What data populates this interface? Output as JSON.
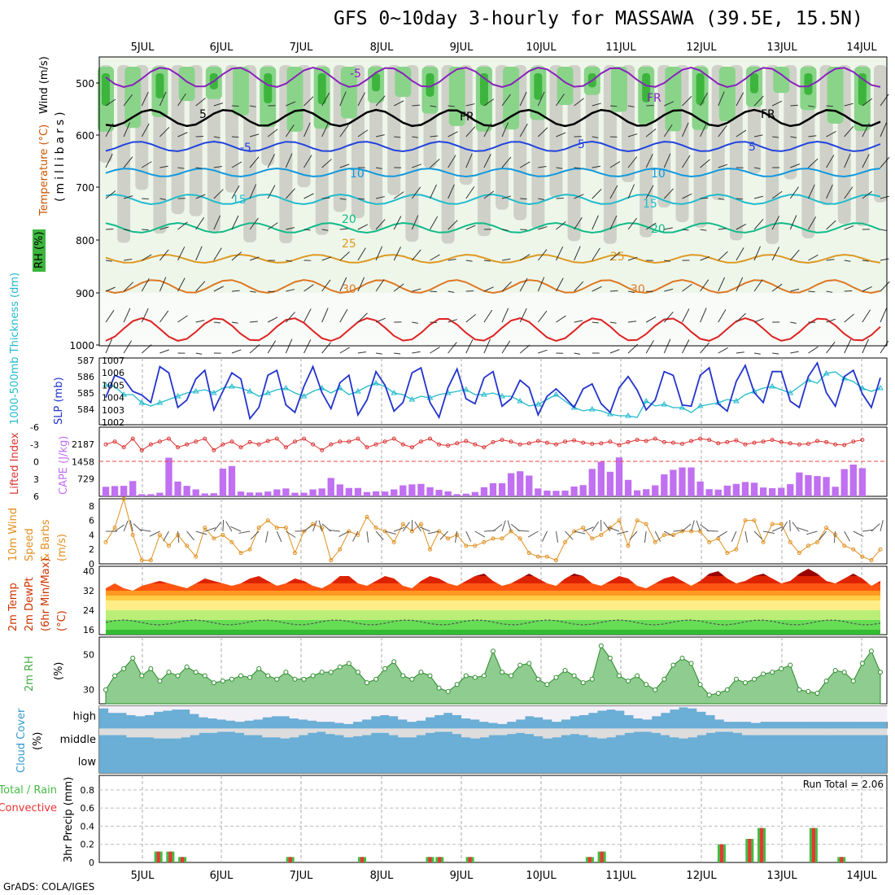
{
  "title": "GFS 0~10day 3-hourly for MASSAWA (39.5E, 15.5N)",
  "credit": "GrADS: COLA/IGES",
  "dates": [
    "5JUL",
    "6JUL",
    "7JUL",
    "8JUL",
    "9JUL",
    "10JUL",
    "11JUL",
    "12JUL",
    "13JUL",
    "14JUL"
  ],
  "colors": {
    "rh_dark": "#3db53d",
    "rh_mid": "#8ad48a",
    "rh_light": "#c4c4bd",
    "cloud": "#6baed6",
    "cape": "#c070f0",
    "slp": "#2233cc",
    "thickness": "#22bbcc",
    "lifted": "#dd3333",
    "wind": "#e09020",
    "rh2m": "#44aa44",
    "precip_total": "#44bb44",
    "precip_conv": "#ee3333"
  },
  "panels": {
    "upper": {
      "ylabel_rh": "RH (%)",
      "ylabel_temp": "Temperature (°C)",
      "ylabel_wind": "Wind (m/s)",
      "ylabel_p": "(millibars)",
      "p_ticks": [
        "500",
        "600",
        "700",
        "800",
        "900",
        "1000"
      ],
      "temp_labels": [
        {
          "text": "-5"
        },
        {
          "text": "5"
        },
        {
          "text": "FR"
        },
        {
          "text": "FR"
        },
        {
          "text": "FR"
        },
        {
          "text": "-5"
        },
        {
          "text": "5"
        },
        {
          "text": "5"
        },
        {
          "text": "10"
        },
        {
          "text": "10"
        },
        {
          "text": "15"
        },
        {
          "text": "15"
        },
        {
          "text": "20"
        },
        {
          "text": "20"
        },
        {
          "text": "25"
        },
        {
          "text": "25"
        },
        {
          "text": "30"
        },
        {
          "text": "30"
        }
      ]
    },
    "slp": {
      "ylabel_thick": "1000-500mb Thickness (dm)",
      "ylabel_slp": "SLP (mb)",
      "left_ticks": [
        "587",
        "586",
        "585",
        "584"
      ],
      "right_ticks": [
        "1007",
        "1006",
        "1005",
        "1004",
        "1003",
        "1002"
      ]
    },
    "cape": {
      "ylabel_li": "Lifted Index",
      "ylabel_cape": "CAPE (J/kg)",
      "li_ticks": [
        "-6",
        "-3",
        "0",
        "3",
        "6"
      ],
      "cape_ticks": [
        "2187",
        "1458",
        "729"
      ]
    },
    "wind": {
      "ylabel": "10m Wind Speed & Barbs (m/s)",
      "ylabel_lines": [
        "10m Wind",
        "Speed",
        "& Barbs",
        "(m/s)"
      ],
      "ticks": [
        "8",
        "6",
        "4",
        "2",
        "0"
      ]
    },
    "temp": {
      "ylabel_lines": [
        "2m Temp",
        "2m DewPt",
        "(6hr Min/Max)",
        "(°C)"
      ],
      "ticks": [
        "40",
        "32",
        "24",
        "16"
      ]
    },
    "rh": {
      "ylabel_lines": [
        "2m RH",
        "(%)"
      ],
      "ticks": [
        "50",
        "30"
      ]
    },
    "cloud": {
      "ylabel_lines": [
        "Cloud Cover",
        "(%)"
      ],
      "levels": [
        "high",
        "middle",
        "low"
      ]
    },
    "precip": {
      "ylabel_lines": [
        "3hr Precip (mm)",
        "Total / Rain",
        "Convective"
      ],
      "ticks": [
        "0.8",
        "0.6",
        "0.4",
        "0.2",
        "0"
      ],
      "run_total": "Run Total = 2.06"
    }
  },
  "chart_data": [
    {
      "type": "line",
      "name": "sea level pressure and 1000-500mb thickness",
      "x": "3-hourly, 5JUL-14JUL",
      "series": [
        {
          "name": "SLP (mb)",
          "values": [
            1004.0,
            1005.8,
            1005.5,
            1004.5,
            1004.2,
            1003.6,
            1006.5,
            1006.0,
            1003.2,
            1003.8,
            1005.5,
            1006.2,
            1003.0,
            1004.5,
            1006.0,
            1005.5,
            1002.3,
            1003.2,
            1005.8,
            1006.2,
            1003.4,
            1002.8,
            1004.9,
            1006.5,
            1004.4,
            1003.1,
            1005.2,
            1005.8,
            1002.6,
            1003.8,
            1006.1,
            1005.0,
            1002.9,
            1003.6,
            1006.0,
            1006.4,
            1003.6,
            1002.4,
            1004.8,
            1006.3,
            1003.9,
            1003.5,
            1005.6,
            1006.1,
            1003.3,
            1003.9,
            1005.4,
            1004.8,
            1002.6,
            1004.1,
            1004.7,
            1004.0,
            1003.2,
            1004.7,
            1005.1,
            1003.5,
            1002.8,
            1004.8,
            1005.7,
            1004.6,
            1003.0,
            1003.8,
            1006.1,
            1005.8,
            1003.4,
            1003.3,
            1005.8,
            1006.4,
            1003.5,
            1002.9,
            1005.3,
            1006.6,
            1004.4,
            1003.6,
            1006.1,
            1006.1,
            1003.7,
            1003.2,
            1005.7,
            1006.8,
            1004.4,
            1003.3,
            1005.7,
            1006.2,
            1004.3,
            1003.2,
            1005.6
          ]
        },
        {
          "name": "Thickness (dm)",
          "values": [
            585.5,
            585.4,
            584.9,
            584.9,
            584.4,
            584.2,
            584.4,
            584.6,
            584.8,
            585.0,
            585.1,
            585.2,
            585.0,
            585.3,
            585.4,
            585.3,
            585.1,
            584.8,
            585.0,
            585.2,
            585.3,
            585.0,
            584.8,
            585.1,
            585.3,
            585.0,
            585.3,
            584.9,
            585.1,
            585.4,
            585.6,
            585.4,
            585.0,
            584.9,
            584.6,
            584.8,
            584.7,
            584.9,
            585.0,
            585.1,
            585.2,
            584.9,
            584.9,
            585.0,
            584.8,
            584.8,
            584.5,
            584.2,
            584.3,
            584.6,
            584.9,
            584.5,
            584.1,
            583.9,
            584.0,
            583.9,
            583.7,
            583.6,
            583.6,
            583.5,
            584.5,
            584.2,
            584.3,
            584.1,
            584.1,
            583.8,
            584.2,
            584.3,
            584.4,
            584.6,
            584.5,
            584.9,
            585.1,
            585.3,
            585.4,
            585.2,
            585.0,
            585.4,
            585.8,
            585.6,
            586.2,
            586.3,
            585.9,
            585.7,
            585.3,
            585.1,
            585.3
          ]
        }
      ]
    },
    {
      "type": "bar",
      "name": "CAPE (J/kg) and Lifted Index",
      "series": [
        {
          "name": "CAPE",
          "values": [
            400,
            430,
            440,
            640,
            90,
            90,
            150,
            1620,
            620,
            440,
            290,
            120,
            130,
            1160,
            1270,
            200,
            160,
            160,
            200,
            290,
            330,
            150,
            150,
            290,
            330,
            770,
            500,
            350,
            350,
            180,
            210,
            200,
            290,
            460,
            500,
            520,
            380,
            270,
            210,
            90,
            110,
            180,
            380,
            550,
            550,
            970,
            1050,
            870,
            330,
            240,
            230,
            240,
            410,
            470,
            1150,
            1450,
            1030,
            1630,
            690,
            250,
            300,
            460,
            920,
            1110,
            1210,
            1210,
            620,
            300,
            280,
            450,
            520,
            600,
            570,
            370,
            340,
            360,
            510,
            1000,
            890,
            850,
            810,
            400,
            1140,
            1330,
            1180
          ]
        },
        {
          "name": "Lifted Index",
          "values": [
            -3,
            -3.5,
            -2.5,
            -4,
            -2,
            -3,
            -3.5,
            -4,
            -2.5,
            -3,
            -3.5,
            -4,
            -2,
            -3,
            -3.5,
            -2.5,
            -3.4,
            -3,
            -3.6,
            -4,
            -2.5,
            -3.5,
            -4,
            -3,
            -2,
            -3,
            -3.5,
            -3.5,
            -4,
            -2.5,
            -3,
            -3.5,
            -4,
            -3,
            -2.5,
            -3.5,
            -4,
            -3,
            -2.8,
            -3.2,
            -3.6,
            -3,
            -2.5,
            -3.4,
            -3.8,
            -3.5,
            -3,
            -3.2,
            -3.6,
            -3.3,
            -3,
            -3.5,
            -3.7,
            -3.3,
            -3.1,
            -3.2,
            -3.5,
            -2.9,
            -3.4,
            -3.8,
            -3.6,
            -4,
            -3.4,
            -3.3,
            -3.1,
            -3.6,
            -4,
            -3.8,
            -3.2,
            -3.4,
            -3.7,
            -3,
            -3.3,
            -3.5,
            -3.8,
            -3.4,
            -3.2,
            -3,
            -3.1,
            -3.6,
            -3.4,
            -3,
            -2.9,
            -3.5,
            -3.8
          ]
        }
      ]
    },
    {
      "type": "line",
      "name": "10m wind speed (m/s)",
      "values": [
        3,
        5,
        9,
        4,
        0.5,
        0.5,
        4,
        2.5,
        4,
        2.5,
        1,
        5,
        3.5,
        4,
        3,
        1.5,
        2,
        5,
        6,
        5,
        5,
        1.5,
        4.5,
        5.5,
        5,
        0.5,
        2,
        4.5,
        4,
        6.5,
        5,
        4.5,
        3,
        5.5,
        4.5,
        5.5,
        2,
        4.5,
        3.5,
        4,
        2.5,
        2.5,
        3,
        3.5,
        3.5,
        4.5,
        3.5,
        1.5,
        1,
        1,
        0.5,
        3,
        4.5,
        5,
        3.5,
        4,
        5,
        6,
        2.5,
        6,
        5.5,
        3,
        4,
        4,
        4.5,
        4.5,
        4.5,
        3,
        3.5,
        1.5,
        2,
        6,
        6,
        3,
        5.5,
        5.5,
        3,
        1.5,
        2.5,
        3,
        5,
        4,
        2.5,
        2,
        1,
        0.5,
        2
      ]
    },
    {
      "type": "area",
      "name": "2m temperature (°C)",
      "values": [
        33,
        35,
        33,
        32,
        34,
        35,
        36,
        35,
        34,
        33,
        35,
        37,
        36,
        35,
        34,
        35,
        37,
        38,
        36,
        34,
        35,
        37,
        36,
        34,
        33,
        35,
        38,
        38,
        35,
        34,
        36,
        38,
        37,
        34,
        33,
        36,
        38,
        37,
        35,
        34,
        36,
        38,
        39,
        36,
        34,
        35,
        37,
        39,
        37,
        35,
        34,
        37,
        39,
        38,
        35,
        34,
        36,
        38,
        37,
        34,
        33,
        35,
        37,
        38,
        36,
        34,
        36,
        39,
        40,
        37,
        35,
        36,
        38,
        39,
        37,
        35,
        36,
        39,
        41,
        39,
        36,
        35,
        37,
        39,
        37,
        34,
        36
      ]
    },
    {
      "type": "area",
      "name": "2m RH (%)",
      "values": [
        30,
        38,
        42,
        48,
        38,
        42,
        35,
        40,
        38,
        43,
        40,
        38,
        34,
        35,
        36,
        38,
        37,
        42,
        38,
        36,
        40,
        36,
        36,
        38,
        40,
        40,
        43,
        45,
        40,
        34,
        36,
        42,
        46,
        38,
        36,
        40,
        38,
        31,
        29,
        33,
        38,
        37,
        38,
        52,
        40,
        38,
        44,
        45,
        36,
        33,
        37,
        41,
        38,
        34,
        36,
        55,
        48,
        38,
        35,
        38,
        33,
        30,
        36,
        44,
        48,
        45,
        33,
        27,
        28,
        30,
        36,
        34,
        36,
        39,
        40,
        42,
        44,
        30,
        29,
        28,
        35,
        41,
        40,
        35,
        45,
        52,
        40
      ]
    },
    {
      "type": "bar",
      "name": "cloud cover (%)",
      "series": [
        {
          "name": "high",
          "values": [
            90,
            70,
            70,
            60,
            55,
            60,
            75,
            80,
            85,
            85,
            65,
            50,
            45,
            40,
            35,
            30,
            35,
            40,
            50,
            55,
            55,
            45,
            40,
            35,
            30,
            30,
            25,
            20,
            30,
            40,
            55,
            60,
            55,
            40,
            30,
            35,
            50,
            60,
            70,
            60,
            45,
            40,
            30,
            25,
            20,
            30,
            40,
            55,
            50,
            40,
            30,
            40,
            55,
            60,
            70,
            80,
            85,
            80,
            60,
            45,
            40,
            55,
            70,
            85,
            95,
            90,
            75,
            60,
            40,
            30,
            30,
            30,
            25,
            30,
            30,
            30,
            30,
            30,
            30,
            30,
            30,
            30,
            30,
            30,
            30,
            30,
            30
          ]
        },
        {
          "name": "middle",
          "values": [
            70,
            70,
            70,
            60,
            60,
            60,
            55,
            55,
            55,
            60,
            70,
            80,
            80,
            85,
            85,
            80,
            70,
            70,
            60,
            60,
            55,
            60,
            70,
            80,
            85,
            75,
            70,
            60,
            65,
            70,
            80,
            80,
            70,
            60,
            60,
            70,
            80,
            85,
            85,
            75,
            60,
            55,
            60,
            70,
            70,
            75,
            80,
            75,
            65,
            55,
            60,
            70,
            75,
            70,
            60,
            55,
            60,
            70,
            80,
            85,
            85,
            80,
            70,
            60,
            55,
            60,
            70,
            80,
            85,
            85,
            80,
            70,
            70,
            70,
            70,
            70,
            70,
            70,
            70,
            70,
            70,
            70,
            70,
            70,
            70,
            70,
            70
          ]
        },
        {
          "name": "low",
          "values": [
            100,
            100,
            100,
            100,
            100,
            100,
            100,
            100,
            100,
            100,
            100,
            100,
            100,
            100,
            100,
            100,
            100,
            100,
            100,
            100,
            100,
            100,
            100,
            100,
            100,
            100,
            100,
            100,
            100,
            100,
            100,
            100,
            100,
            100,
            100,
            100,
            100,
            100,
            100,
            100,
            100,
            100,
            100,
            100,
            100,
            100,
            100,
            100,
            100,
            100,
            100,
            100,
            100,
            100,
            100,
            100,
            100,
            100,
            100,
            100,
            100,
            100,
            100,
            100,
            100,
            100,
            100,
            100,
            100,
            100,
            100,
            100,
            100,
            100,
            100,
            100,
            100,
            100,
            100,
            100,
            100,
            100,
            100,
            100,
            100,
            100,
            100
          ]
        }
      ]
    },
    {
      "type": "bar",
      "name": "3hr precip (mm)",
      "bars": [
        {
          "x": 5.2,
          "value": 0.12
        },
        {
          "x": 5.35,
          "value": 0.12
        },
        {
          "x": 5.5,
          "value": 0.06
        },
        {
          "x": 6.85,
          "value": 0.06
        },
        {
          "x": 7.75,
          "value": 0.06
        },
        {
          "x": 8.6,
          "value": 0.06
        },
        {
          "x": 8.72,
          "value": 0.06
        },
        {
          "x": 9.1,
          "value": 0.06
        },
        {
          "x": 10.6,
          "value": 0.06
        },
        {
          "x": 10.75,
          "value": 0.12
        },
        {
          "x": 12.25,
          "value": 0.2
        },
        {
          "x": 12.6,
          "value": 0.26
        },
        {
          "x": 12.75,
          "value": 0.38
        },
        {
          "x": 13.4,
          "value": 0.38
        },
        {
          "x": 13.75,
          "value": 0.06
        }
      ]
    }
  ]
}
